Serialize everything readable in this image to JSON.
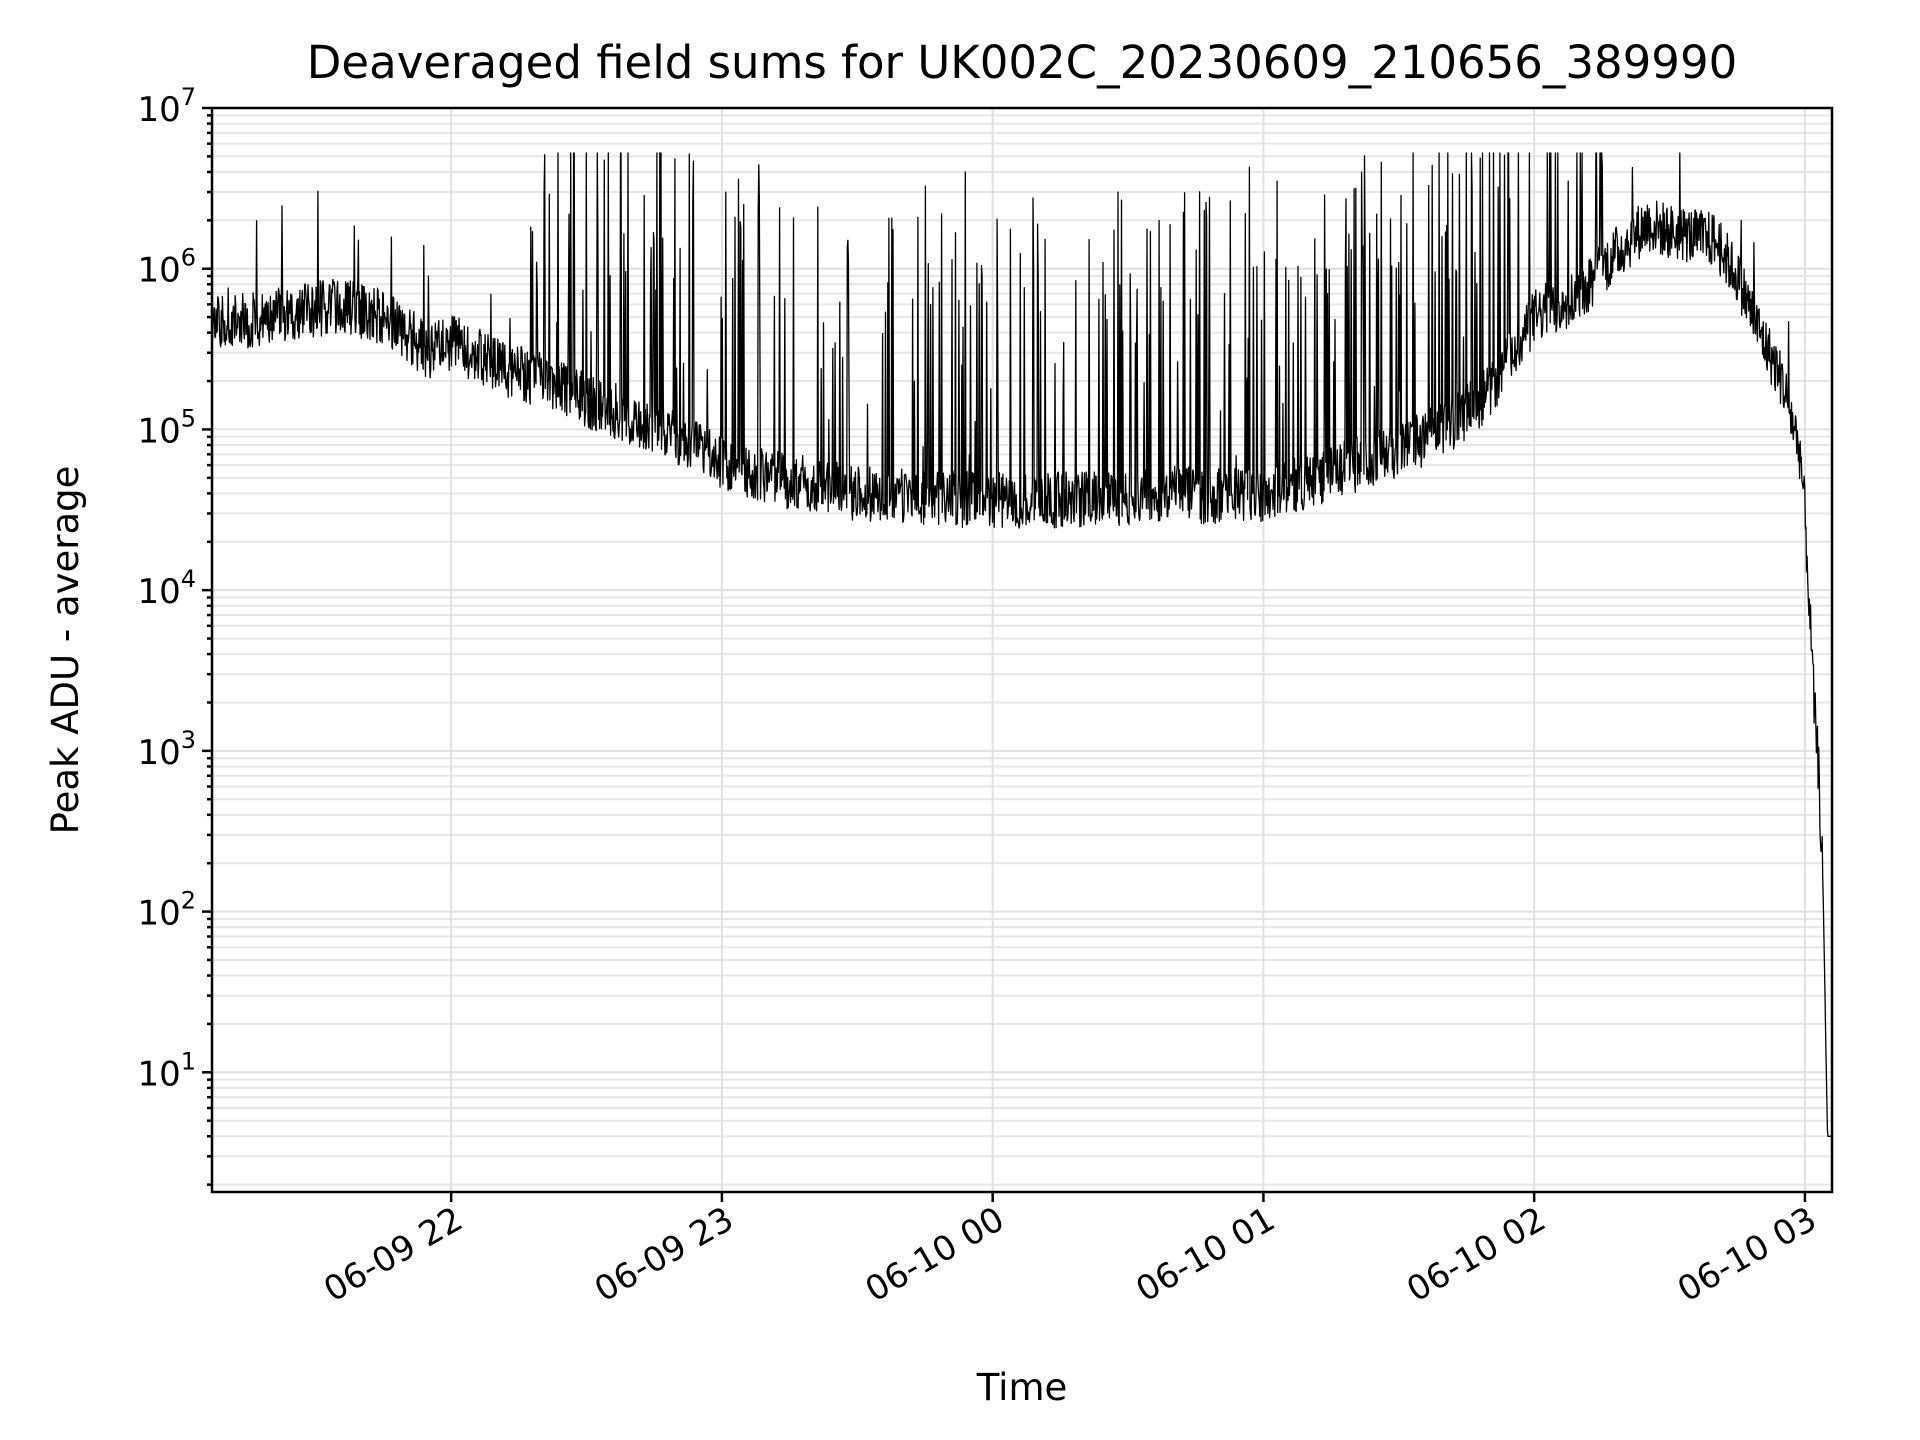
{
  "chart_data": {
    "type": "line",
    "title": "Deaveraged field sums for UK002C_20230609_210656_389990",
    "xlabel": "Time",
    "ylabel": "Peak ADU - average",
    "x_range": [
      "2023-06-09 21:07",
      "2023-06-10 03:06"
    ],
    "x_ticks": [
      "06-09 22",
      "06-09 23",
      "06-10 00",
      "06-10 01",
      "06-10 02",
      "06-10 03"
    ],
    "y_scale": "log",
    "y_range": [
      1.8,
      10000000
    ],
    "y_ticks": [
      {
        "base": "10",
        "exp": "1",
        "value": 10
      },
      {
        "base": "10",
        "exp": "2",
        "value": 100
      },
      {
        "base": "10",
        "exp": "3",
        "value": 1000
      },
      {
        "base": "10",
        "exp": "4",
        "value": 10000
      },
      {
        "base": "10",
        "exp": "5",
        "value": 100000
      },
      {
        "base": "10",
        "exp": "6",
        "value": 1000000
      },
      {
        "base": "10",
        "exp": "7",
        "value": 10000000
      }
    ],
    "grid": "major and minor",
    "legend": "none",
    "line_color": "#000000",
    "series": [
      {
        "x": [
          "2023-06-09 21:07",
          "2023-06-09 21:15",
          "2023-06-09 21:25",
          "2023-06-09 21:35",
          "2023-06-09 21:45",
          "2023-06-09 21:50",
          "2023-06-09 21:55",
          "2023-06-09 22:00",
          "2023-06-09 22:10",
          "2023-06-09 22:20",
          "2023-06-09 22:30",
          "2023-06-09 22:40",
          "2023-06-09 22:50",
          "2023-06-09 23:00",
          "2023-06-09 23:10",
          "2023-06-09 23:20",
          "2023-06-09 23:30",
          "2023-06-09 23:40",
          "2023-06-09 23:50",
          "2023-06-10 00:00",
          "2023-06-10 00:10",
          "2023-06-10 00:20",
          "2023-06-10 00:30",
          "2023-06-10 00:40",
          "2023-06-10 00:50",
          "2023-06-10 01:00",
          "2023-06-10 01:10",
          "2023-06-10 01:20",
          "2023-06-10 01:30",
          "2023-06-10 01:40",
          "2023-06-10 01:50",
          "2023-06-10 02:00",
          "2023-06-10 02:10",
          "2023-06-10 02:15",
          "2023-06-10 02:20",
          "2023-06-10 02:25",
          "2023-06-10 02:30",
          "2023-06-10 02:35",
          "2023-06-10 02:40",
          "2023-06-10 02:45",
          "2023-06-10 02:50",
          "2023-06-10 02:55",
          "2023-06-10 02:57",
          "2023-06-10 02:59",
          "2023-06-10 03:00",
          "2023-06-10 03:01",
          "2023-06-10 03:02",
          "2023-06-10 03:03",
          "2023-06-10 03:04",
          "2023-06-10 03:05",
          "2023-06-10 03:06"
        ],
        "y": [
          450000,
          480000,
          520000,
          600000,
          500000,
          400000,
          300000,
          350000,
          250000,
          200000,
          150000,
          120000,
          90000,
          60000,
          50000,
          45000,
          40000,
          38000,
          37000,
          36000,
          36000,
          37000,
          38000,
          40000,
          38000,
          40000,
          48000,
          60000,
          75000,
          100000,
          170000,
          500000,
          700000,
          1000000,
          1400000,
          1900000,
          1700000,
          1600000,
          1500000,
          900000,
          400000,
          200000,
          120000,
          70000,
          30000,
          8000,
          2000,
          800,
          150,
          4,
          4
        ]
      }
    ]
  }
}
